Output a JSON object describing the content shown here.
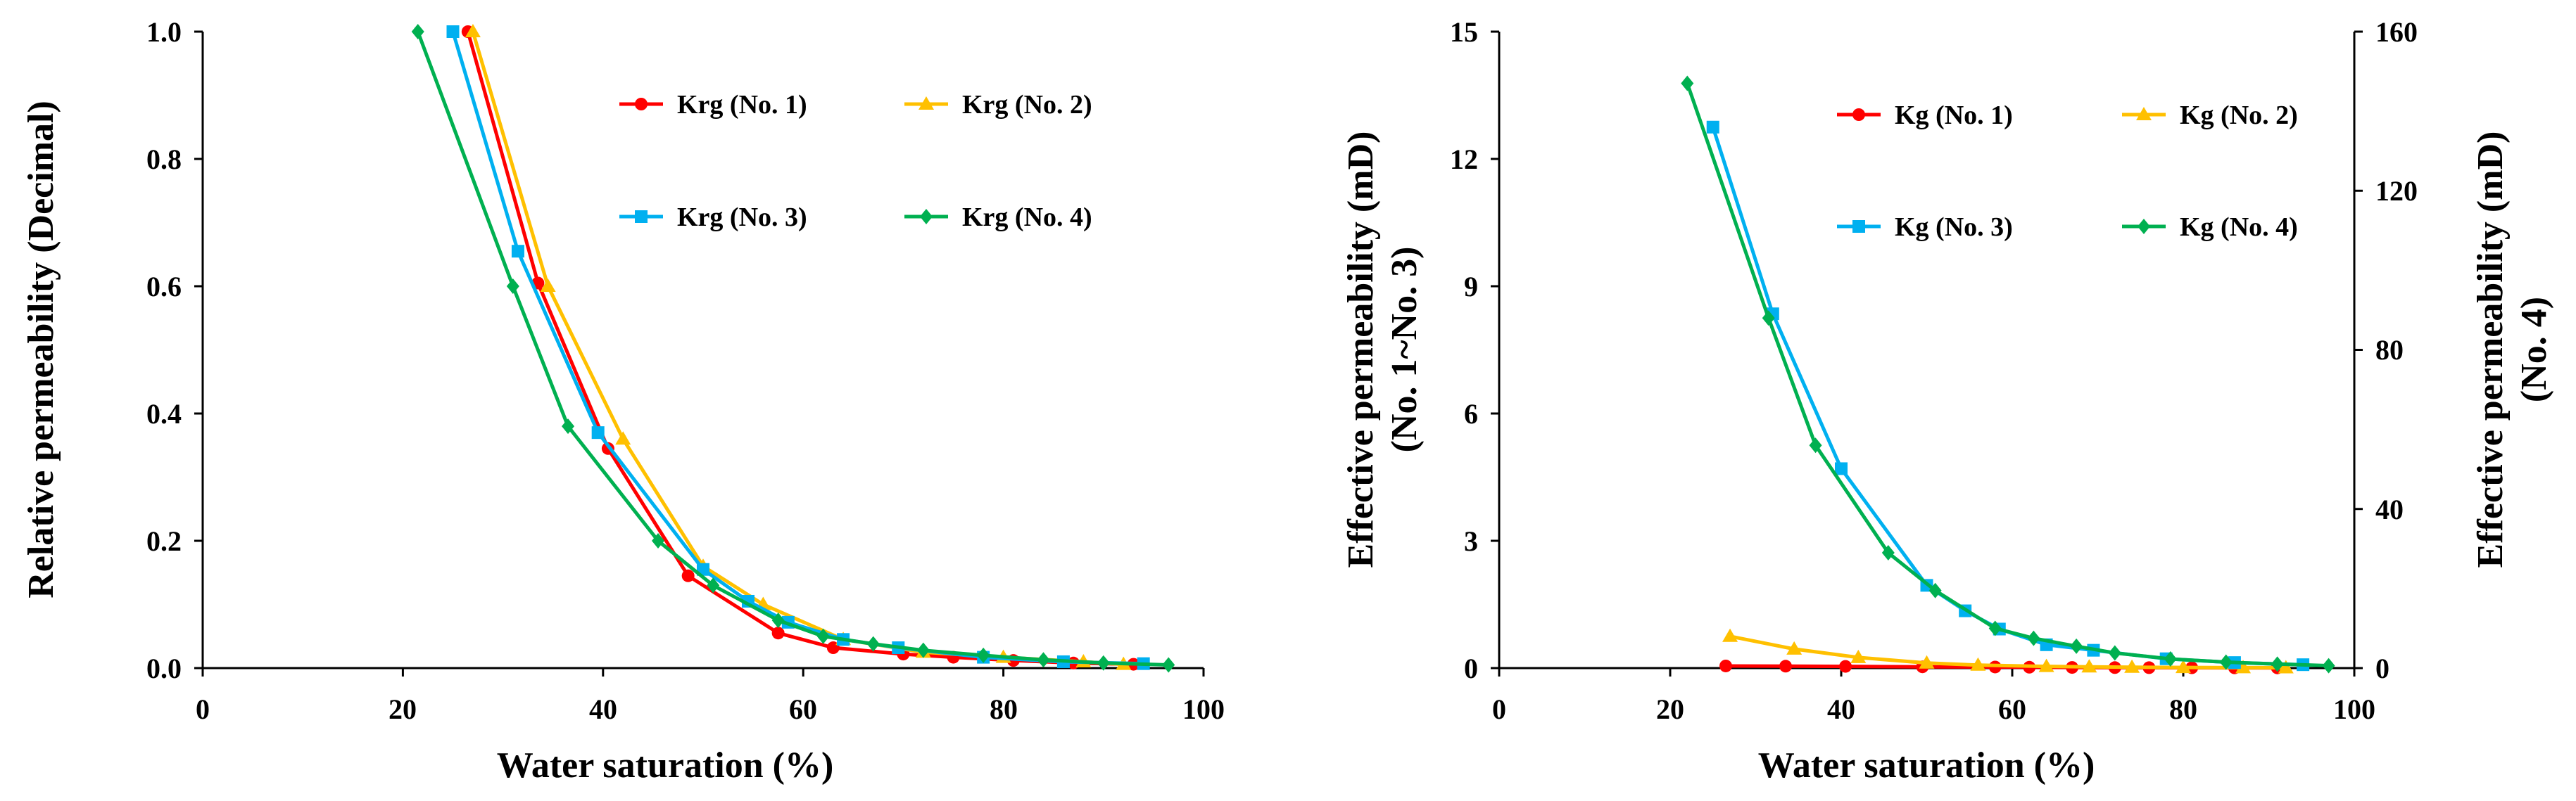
{
  "chart_data": [
    {
      "type": "line",
      "xlabel": "Water saturation (%)",
      "ylabel": "Relative permeability (Decimal)",
      "xlim": [
        0,
        100
      ],
      "ylim": [
        0,
        1.0
      ],
      "x_ticks": [
        "0",
        "20",
        "40",
        "60",
        "80",
        "100"
      ],
      "y_ticks": [
        "0.0",
        "0.2",
        "0.4",
        "0.6",
        "0.8",
        "1.0"
      ],
      "series": [
        {
          "name": "Krg (No. 1)",
          "color": "#ff0000",
          "marker": "circle",
          "axis": "left",
          "x": [
            26.5,
            33.5,
            40.5,
            48.5,
            57.5,
            63,
            70,
            75,
            81,
            87,
            93
          ],
          "y": [
            1.0,
            0.605,
            0.345,
            0.145,
            0.055,
            0.032,
            0.022,
            0.017,
            0.012,
            0.008,
            0.006
          ]
        },
        {
          "name": "Krg (No. 2)",
          "color": "#ffc000",
          "marker": "triangle",
          "axis": "left",
          "x": [
            27,
            34.5,
            42,
            50,
            56,
            64,
            72,
            80,
            88,
            92
          ],
          "y": [
            1.0,
            0.6,
            0.36,
            0.16,
            0.1,
            0.045,
            0.025,
            0.017,
            0.01,
            0.006
          ]
        },
        {
          "name": "Krg (No. 3)",
          "color": "#00b0f0",
          "marker": "square",
          "axis": "left",
          "x": [
            25,
            31.5,
            39.5,
            50,
            54.5,
            58.5,
            64,
            69.5,
            78,
            86,
            94
          ],
          "y": [
            1.0,
            0.655,
            0.37,
            0.155,
            0.105,
            0.072,
            0.045,
            0.032,
            0.017,
            0.01,
            0.007
          ]
        },
        {
          "name": "Krg (No. 4)",
          "color": "#00b050",
          "marker": "diamond",
          "axis": "left",
          "x": [
            21.5,
            31,
            36.5,
            45.5,
            51,
            57.5,
            62,
            67,
            72,
            78,
            84,
            90,
            96.5
          ],
          "y": [
            1.0,
            0.6,
            0.38,
            0.2,
            0.13,
            0.075,
            0.05,
            0.038,
            0.028,
            0.02,
            0.013,
            0.008,
            0.005
          ]
        }
      ],
      "legend": "top-right"
    },
    {
      "type": "line",
      "xlabel": "Water saturation (%)",
      "ylabel": "Effective permeability (mD)",
      "ylabel_line2": "(No. 1~No. 3)",
      "y2label": "Effective permeability (mD)",
      "y2label_line2": "(No. 4)",
      "xlim": [
        0,
        100
      ],
      "ylim": [
        0,
        15
      ],
      "y2lim": [
        0,
        160
      ],
      "x_ticks": [
        "0",
        "20",
        "40",
        "60",
        "80",
        "100"
      ],
      "y_ticks": [
        "0",
        "3",
        "6",
        "9",
        "12",
        "15"
      ],
      "y2_ticks": [
        "0",
        "40",
        "80",
        "120",
        "160"
      ],
      "series": [
        {
          "name": "Kg (No. 1)",
          "color": "#ff0000",
          "marker": "circle",
          "axis": "left",
          "x": [
            26.5,
            33.5,
            40.5,
            49.5,
            58,
            62,
            67,
            72,
            76,
            81,
            86,
            91
          ],
          "y": [
            0.05,
            0.045,
            0.04,
            0.03,
            0.025,
            0.02,
            0.015,
            0.012,
            0.01,
            0.008,
            0.006,
            0.005
          ]
        },
        {
          "name": "Kg (No. 2)",
          "color": "#ffc000",
          "marker": "triangle",
          "axis": "left",
          "x": [
            27,
            34.5,
            42,
            50,
            56,
            64,
            69,
            74,
            80,
            87,
            92
          ],
          "y": [
            0.75,
            0.45,
            0.25,
            0.12,
            0.07,
            0.04,
            0.03,
            0.02,
            0.015,
            0.01,
            0.008
          ]
        },
        {
          "name": "Kg (No. 3)",
          "color": "#00b0f0",
          "marker": "square",
          "axis": "left",
          "x": [
            25,
            32,
            40,
            50,
            54.5,
            58.5,
            64,
            69.5,
            78,
            86,
            94
          ],
          "y": [
            12.75,
            8.35,
            4.7,
            1.95,
            1.35,
            0.92,
            0.55,
            0.42,
            0.22,
            0.13,
            0.08
          ]
        },
        {
          "name": "Kg (No. 4)",
          "color": "#00b050",
          "marker": "diamond",
          "axis": "right",
          "x": [
            22,
            31.5,
            37,
            45.5,
            51,
            58,
            62.5,
            67.5,
            72,
            78.5,
            85,
            91,
            97
          ],
          "y": [
            147,
            88,
            56,
            29,
            19.5,
            10,
            7.5,
            5.5,
            3.8,
            2.3,
            1.5,
            1.0,
            0.6
          ]
        }
      ],
      "legend": "top-right"
    }
  ]
}
